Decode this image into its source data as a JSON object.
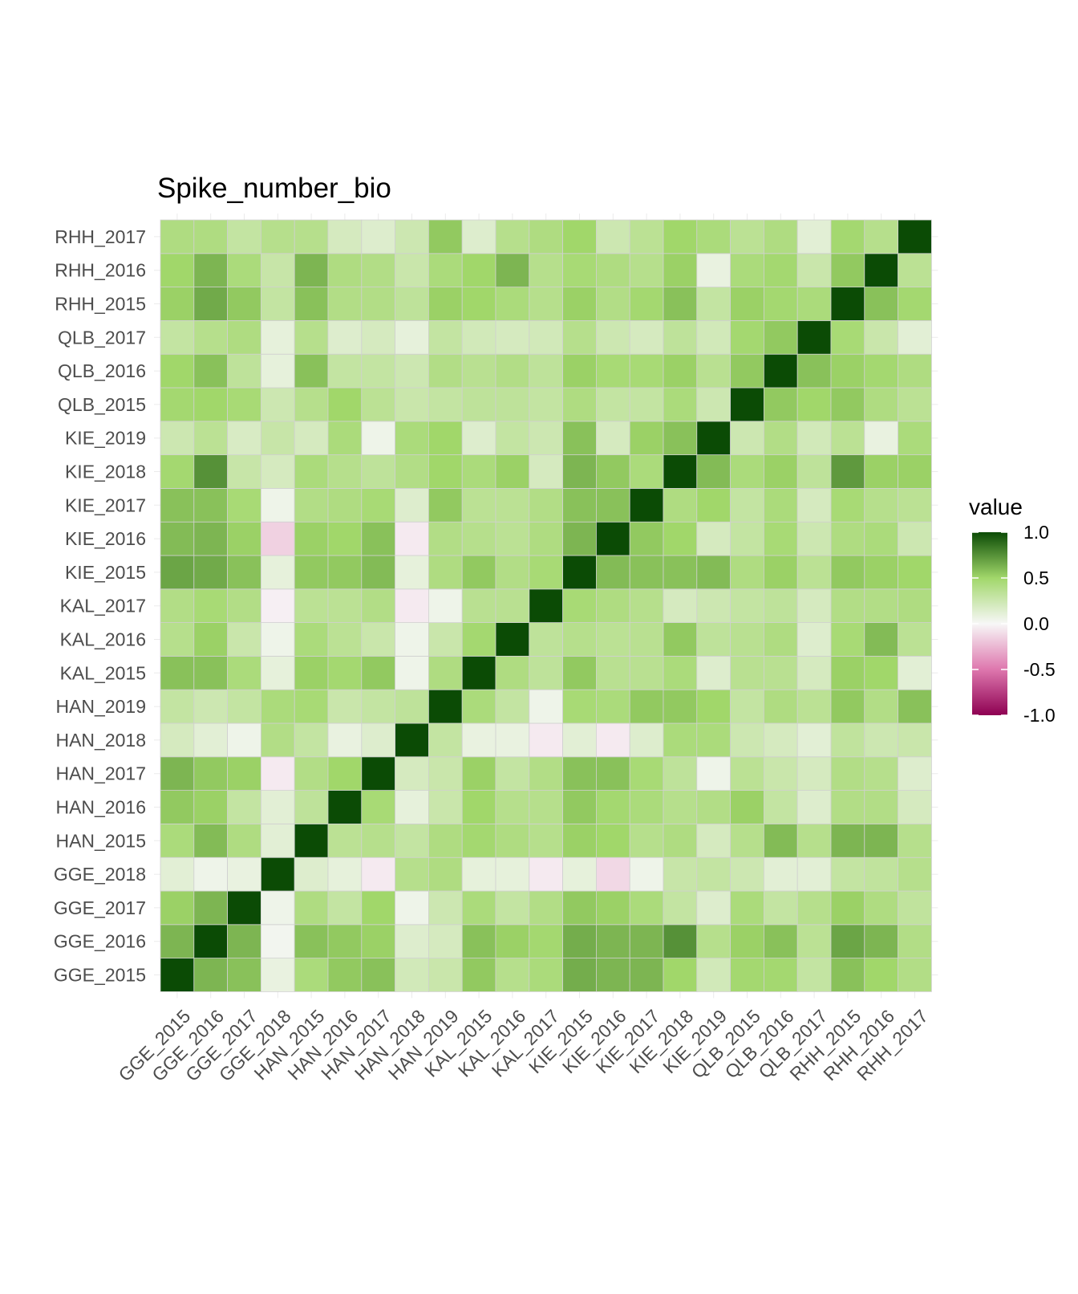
{
  "chart_data": {
    "type": "heatmap",
    "title": "Spike_number_bio",
    "xlabel": "",
    "ylabel": "",
    "grid": true,
    "categories": [
      "GGE_2015",
      "GGE_2016",
      "GGE_2017",
      "GGE_2018",
      "HAN_2015",
      "HAN_2016",
      "HAN_2017",
      "HAN_2018",
      "HAN_2019",
      "KAL_2015",
      "KAL_2016",
      "KAL_2017",
      "KIE_2015",
      "KIE_2016",
      "KIE_2017",
      "KIE_2018",
      "KIE_2019",
      "QLB_2015",
      "QLB_2016",
      "QLB_2017",
      "RHH_2015",
      "RHH_2016",
      "RHH_2017"
    ],
    "values": [
      [
        1.0,
        0.62,
        0.58,
        0.08,
        0.44,
        0.55,
        0.58,
        0.22,
        0.27,
        0.55,
        0.38,
        0.44,
        0.65,
        0.62,
        0.62,
        0.5,
        0.22,
        0.48,
        0.48,
        0.3,
        0.58,
        0.5,
        0.4
      ],
      [
        0.62,
        1.0,
        0.62,
        0.03,
        0.58,
        0.55,
        0.52,
        0.15,
        0.2,
        0.58,
        0.52,
        0.48,
        0.65,
        0.62,
        0.62,
        0.75,
        0.38,
        0.52,
        0.58,
        0.35,
        0.68,
        0.62,
        0.4
      ],
      [
        0.52,
        0.62,
        1.0,
        0.05,
        0.42,
        0.3,
        0.5,
        0.05,
        0.25,
        0.44,
        0.3,
        0.4,
        0.55,
        0.52,
        0.44,
        0.3,
        0.15,
        0.44,
        0.3,
        0.38,
        0.52,
        0.42,
        0.32
      ],
      [
        0.12,
        0.05,
        0.08,
        1.0,
        0.15,
        0.1,
        -0.05,
        0.38,
        0.42,
        0.1,
        0.1,
        -0.05,
        0.1,
        -0.12,
        0.05,
        0.28,
        0.3,
        0.25,
        0.12,
        0.12,
        0.3,
        0.32,
        0.38
      ],
      [
        0.44,
        0.6,
        0.42,
        0.12,
        1.0,
        0.35,
        0.38,
        0.3,
        0.42,
        0.48,
        0.42,
        0.38,
        0.52,
        0.5,
        0.38,
        0.42,
        0.2,
        0.38,
        0.6,
        0.38,
        0.62,
        0.62,
        0.38
      ],
      [
        0.55,
        0.52,
        0.3,
        0.12,
        0.33,
        1.0,
        0.46,
        0.1,
        0.27,
        0.5,
        0.38,
        0.38,
        0.55,
        0.48,
        0.44,
        0.38,
        0.4,
        0.52,
        0.3,
        0.15,
        0.4,
        0.4,
        0.2
      ],
      [
        0.62,
        0.55,
        0.52,
        -0.05,
        0.4,
        0.5,
        1.0,
        0.2,
        0.27,
        0.52,
        0.3,
        0.4,
        0.58,
        0.58,
        0.46,
        0.33,
        0.05,
        0.35,
        0.27,
        0.2,
        0.4,
        0.38,
        0.15
      ],
      [
        0.2,
        0.12,
        0.05,
        0.4,
        0.3,
        0.08,
        0.15,
        1.0,
        0.3,
        0.08,
        0.08,
        -0.05,
        0.12,
        -0.05,
        0.15,
        0.44,
        0.44,
        0.25,
        0.2,
        0.12,
        0.32,
        0.25,
        0.27
      ],
      [
        0.3,
        0.25,
        0.3,
        0.44,
        0.46,
        0.27,
        0.3,
        0.33,
        1.0,
        0.44,
        0.3,
        0.05,
        0.46,
        0.44,
        0.55,
        0.55,
        0.5,
        0.3,
        0.42,
        0.35,
        0.55,
        0.4,
        0.58
      ],
      [
        0.58,
        0.58,
        0.44,
        0.1,
        0.52,
        0.48,
        0.55,
        0.05,
        0.42,
        1.0,
        0.42,
        0.33,
        0.55,
        0.36,
        0.36,
        0.44,
        0.15,
        0.36,
        0.36,
        0.2,
        0.52,
        0.5,
        0.12
      ],
      [
        0.38,
        0.52,
        0.27,
        0.05,
        0.44,
        0.35,
        0.27,
        0.05,
        0.27,
        0.48,
        1.0,
        0.33,
        0.38,
        0.35,
        0.36,
        0.55,
        0.33,
        0.36,
        0.42,
        0.15,
        0.46,
        0.6,
        0.35
      ],
      [
        0.4,
        0.46,
        0.4,
        -0.03,
        0.35,
        0.35,
        0.4,
        -0.05,
        0.05,
        0.36,
        0.36,
        1.0,
        0.46,
        0.42,
        0.38,
        0.2,
        0.25,
        0.3,
        0.33,
        0.2,
        0.4,
        0.4,
        0.42
      ],
      [
        0.68,
        0.66,
        0.58,
        0.1,
        0.55,
        0.55,
        0.6,
        0.1,
        0.42,
        0.55,
        0.4,
        0.46,
        1.0,
        0.6,
        0.58,
        0.58,
        0.6,
        0.42,
        0.52,
        0.35,
        0.55,
        0.52,
        0.5
      ],
      [
        0.6,
        0.62,
        0.52,
        -0.15,
        0.52,
        0.5,
        0.58,
        -0.05,
        0.4,
        0.38,
        0.35,
        0.42,
        0.62,
        1.0,
        0.55,
        0.5,
        0.2,
        0.3,
        0.46,
        0.25,
        0.42,
        0.44,
        0.25
      ],
      [
        0.58,
        0.58,
        0.46,
        0.05,
        0.4,
        0.42,
        0.46,
        0.15,
        0.55,
        0.35,
        0.35,
        0.4,
        0.58,
        0.58,
        1.0,
        0.42,
        0.5,
        0.3,
        0.44,
        0.2,
        0.46,
        0.38,
        0.35
      ],
      [
        0.48,
        0.75,
        0.28,
        0.2,
        0.44,
        0.38,
        0.33,
        0.4,
        0.5,
        0.44,
        0.52,
        0.2,
        0.62,
        0.55,
        0.44,
        1.0,
        0.6,
        0.44,
        0.52,
        0.33,
        0.72,
        0.52,
        0.52
      ],
      [
        0.25,
        0.35,
        0.18,
        0.28,
        0.2,
        0.44,
        0.05,
        0.44,
        0.5,
        0.15,
        0.3,
        0.25,
        0.58,
        0.2,
        0.52,
        0.58,
        1.0,
        0.25,
        0.4,
        0.22,
        0.35,
        0.08,
        0.44
      ],
      [
        0.48,
        0.5,
        0.46,
        0.25,
        0.38,
        0.5,
        0.35,
        0.27,
        0.3,
        0.33,
        0.33,
        0.3,
        0.42,
        0.3,
        0.3,
        0.44,
        0.25,
        1.0,
        0.55,
        0.5,
        0.55,
        0.42,
        0.35
      ],
      [
        0.5,
        0.58,
        0.33,
        0.1,
        0.58,
        0.3,
        0.3,
        0.25,
        0.4,
        0.36,
        0.4,
        0.33,
        0.52,
        0.46,
        0.46,
        0.52,
        0.36,
        0.55,
        1.0,
        0.58,
        0.52,
        0.48,
        0.42
      ],
      [
        0.3,
        0.38,
        0.42,
        0.1,
        0.38,
        0.15,
        0.2,
        0.1,
        0.3,
        0.22,
        0.2,
        0.22,
        0.38,
        0.25,
        0.2,
        0.33,
        0.22,
        0.48,
        0.55,
        1.0,
        0.46,
        0.27,
        0.12
      ],
      [
        0.52,
        0.66,
        0.55,
        0.3,
        0.58,
        0.4,
        0.4,
        0.33,
        0.52,
        0.5,
        0.44,
        0.38,
        0.52,
        0.4,
        0.48,
        0.58,
        0.3,
        0.52,
        0.48,
        0.44,
        1.0,
        0.58,
        0.48
      ],
      [
        0.5,
        0.62,
        0.44,
        0.28,
        0.62,
        0.42,
        0.4,
        0.27,
        0.44,
        0.5,
        0.62,
        0.38,
        0.46,
        0.42,
        0.38,
        0.52,
        0.08,
        0.44,
        0.48,
        0.27,
        0.55,
        1.0,
        0.35
      ],
      [
        0.42,
        0.42,
        0.3,
        0.38,
        0.38,
        0.2,
        0.15,
        0.25,
        0.55,
        0.15,
        0.38,
        0.42,
        0.5,
        0.25,
        0.35,
        0.5,
        0.44,
        0.35,
        0.42,
        0.12,
        0.48,
        0.38,
        1.0
      ]
    ],
    "color_scale": {
      "min": -1.0,
      "max": 1.0,
      "stops": [
        {
          "value": -1.0,
          "color": "#8e0152"
        },
        {
          "value": -0.5,
          "color": "#de77ae"
        },
        {
          "value": 0.0,
          "color": "#f7f7f7"
        },
        {
          "value": 0.5,
          "color": "#a1d76a"
        },
        {
          "value": 1.0,
          "color": "#0b4b05"
        }
      ]
    },
    "legend": {
      "title": "value",
      "placement": "right",
      "ticks": [
        "1.0",
        "0.5",
        "0.0",
        "-0.5",
        "-1.0"
      ],
      "tick_values": [
        1.0,
        0.5,
        0.0,
        -0.5,
        -1.0
      ]
    }
  }
}
